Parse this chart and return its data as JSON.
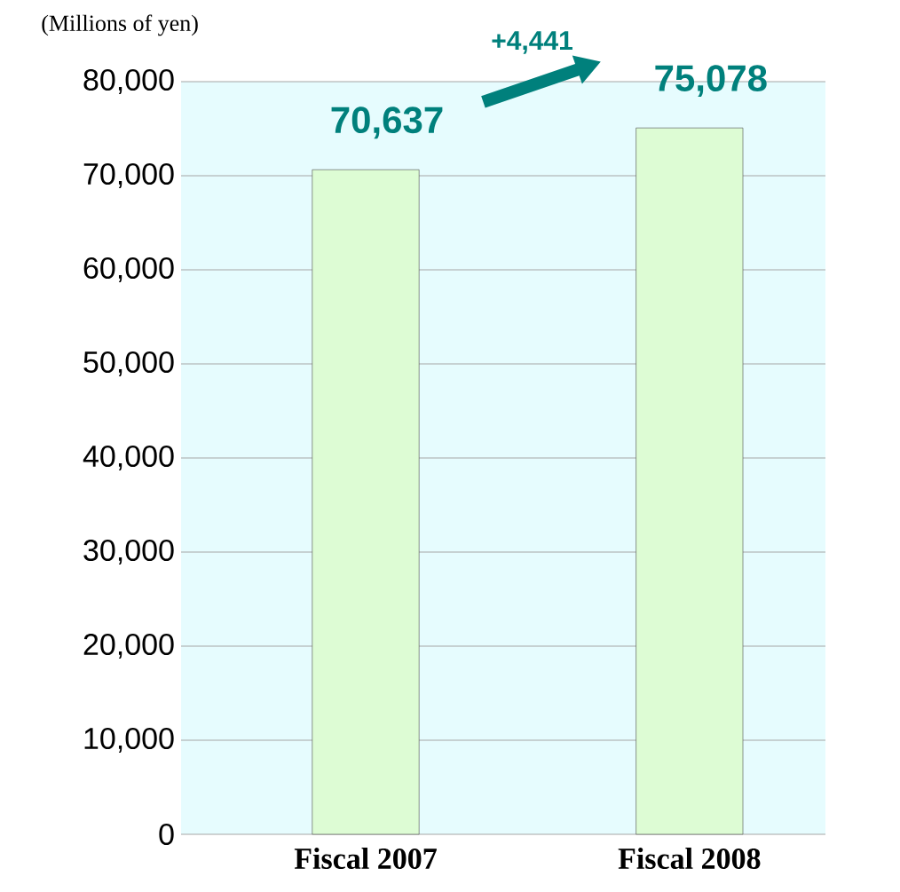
{
  "chart_data": {
    "type": "bar",
    "ylabel": "(Millions of yen)",
    "categories": [
      "Fiscal 2007",
      "Fiscal 2008"
    ],
    "values": [
      70637,
      75078
    ],
    "color": "#ddfcd4",
    "ylim": [
      0,
      80000
    ],
    "yticks": [
      {
        "value": 0,
        "label": "0"
      },
      {
        "value": 10000,
        "label": "10,000"
      },
      {
        "value": 20000,
        "label": "20,000"
      },
      {
        "value": 30000,
        "label": "30,000"
      },
      {
        "value": 40000,
        "label": "40,000"
      },
      {
        "value": 50000,
        "label": "50,000"
      },
      {
        "value": 60000,
        "label": "60,000"
      },
      {
        "value": 70000,
        "label": "70,000"
      },
      {
        "value": 80000,
        "label": "80,000"
      }
    ],
    "grid": "y",
    "value_labels": [
      "70,637",
      "75,078"
    ],
    "annotations": [
      "+4,441"
    ]
  }
}
